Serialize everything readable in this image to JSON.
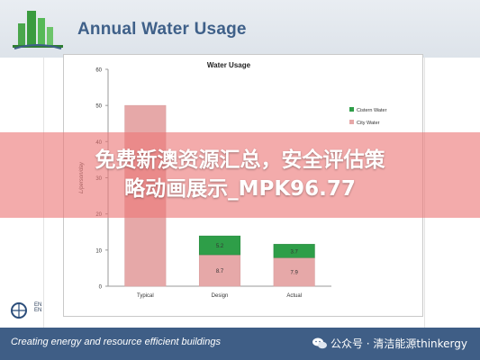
{
  "header": {
    "title": "Annual Water Usage"
  },
  "chart_data": {
    "type": "bar",
    "title": "Water Usage",
    "ylabel": "L/person/day",
    "xlabel": "",
    "ylim": [
      0,
      60
    ],
    "yticks": [
      0,
      10,
      20,
      30,
      40,
      50,
      60
    ],
    "categories": [
      "Typical",
      "Design",
      "Actual"
    ],
    "series": [
      {
        "name": "City Water",
        "values": [
          50,
          8.7,
          7.9
        ],
        "color": "#e6a8a8",
        "labels": [
          "",
          "8.7",
          "7.9"
        ]
      },
      {
        "name": "Cistern Water",
        "values": [
          0,
          5.2,
          3.7
        ],
        "color": "#2e9e48",
        "labels": [
          "",
          "5.2",
          "3.7"
        ]
      }
    ],
    "stacked": true,
    "legend": "right",
    "grid": false
  },
  "overlay": {
    "line1": "免费新澳资源汇总，安全评估策",
    "line2": "略动画展示_MPK96.77"
  },
  "footer": {
    "tagline": "Creating energy and resource efficient buildings"
  },
  "watermark": {
    "text": "公众号 · 清洁能源thinkergy"
  },
  "side_logo": {
    "line1": "EN",
    "line2": "EN"
  }
}
